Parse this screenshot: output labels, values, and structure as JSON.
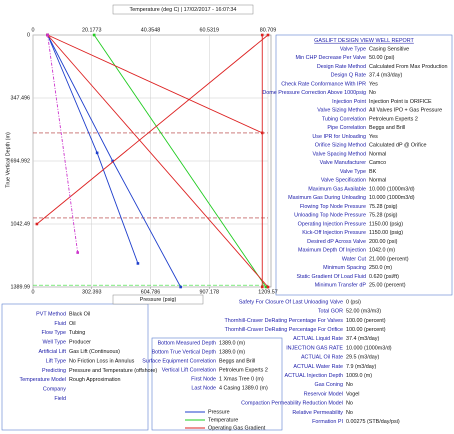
{
  "chart_data": {
    "type": "line",
    "title": "Temperature (deg C) | 17/02/2017 - 16:07:34",
    "x_label": "Pressure (psig)",
    "y_label": "True Vertical Depth (m)",
    "xlim": [
      0,
      1209.57
    ],
    "xticks": [
      0,
      302.393,
      604.786,
      907.178,
      1209.57
    ],
    "x2lim": [
      0,
      80.709
    ],
    "x2ticks": [
      0,
      20.1773,
      40.3548,
      60.5319,
      80.709
    ],
    "ylim": [
      0,
      1389.99
    ],
    "yticks": [
      0,
      347.496,
      694.992,
      1042.49,
      1389.99
    ],
    "valve_depths": [
      540,
      1009
    ],
    "perforation_depth": 1380,
    "series": [
      {
        "name": "Pressure",
        "color": "#1f3fcc",
        "x": [
          75.28,
          410,
          760
        ],
        "y": [
          0,
          694.992,
          1389.99
        ]
      },
      {
        "color": "#1f3fcc",
        "x": [
          75.28,
          330,
          540
        ],
        "y": [
          0,
          650,
          1260
        ]
      },
      {
        "name": "Temperature",
        "color": "#22cc22",
        "axis": "x2",
        "x": [
          21,
          80
        ],
        "y": [
          0,
          1389.99
        ]
      },
      {
        "name": "Operating Gas Gradient",
        "color": "#dd2222",
        "x": [
          75.28,
          1180
        ],
        "y": [
          0,
          540
        ]
      },
      {
        "color": "#dd2222",
        "x": [
          1209.57,
          20
        ],
        "y": [
          0,
          1042.49
        ]
      },
      {
        "color": "#dd2222",
        "x": [
          75.28,
          1209.57
        ],
        "y": [
          0,
          1389.99
        ]
      },
      {
        "color": "#dd2222",
        "x": [
          1180,
          1180
        ],
        "y": [
          0,
          1389.99
        ]
      },
      {
        "color": "#cc33cc",
        "dash": true,
        "x": [
          75.28,
          230
        ],
        "y": [
          0,
          1200
        ]
      }
    ]
  },
  "report": {
    "title": "GASLIFT DESIGN VIEW WELL REPORT",
    "rows": [
      [
        "Valve Type",
        "Casing Sensitive"
      ],
      [
        "Min CHP Decrease Per Valve",
        "50.00 (psi)"
      ],
      [
        "Design Rate Method",
        "Calculated From Max Production"
      ],
      [
        "Design Q Rate",
        "37.4 (m3/day)"
      ],
      [
        "Check Rate Conformance With IPR",
        "Yes"
      ],
      [
        "Dome Pressure Correction Above 1000psig",
        "No"
      ],
      [
        "Injection Point",
        "Injection Point is ORIFICE"
      ],
      [
        "Valve Sizing Method",
        "All Valves IPO + Gas Pressure"
      ],
      [
        "Tubing Correlation",
        "Petroleum Experts 2"
      ],
      [
        "Pipe Correlation",
        "Beggs and Brill"
      ],
      [
        "Use IPR for Unloading",
        "Yes"
      ],
      [
        "Orifice Sizing Method",
        "Calculated dP @ Orifice"
      ],
      [
        "Valve Spacing Method",
        "Normal"
      ],
      [
        "Valve Manufacturer",
        "Camco"
      ],
      [
        "Valve Type",
        "BK"
      ],
      [
        "Valve Specification",
        "Normal"
      ],
      [
        "Maximum Gas Available",
        "10.000 (1000m3/d)"
      ],
      [
        "Maximum Gas During Unloading",
        "10.000 (1000m3/d)"
      ],
      [
        "Flowing Top Node Pressure",
        "75.28 (psig)"
      ],
      [
        "Unloading Top Node Pressure",
        "75.28 (psig)"
      ],
      [
        "Operating Injection Pressure",
        "1150.00 (psig)"
      ],
      [
        "Kick-Off Injection Pressure",
        "1150.00 (psig)"
      ],
      [
        "Desired dP Across Valve",
        "200.00 (psi)"
      ],
      [
        "Maximum Depth Of Injection",
        "1042.0 (m)"
      ],
      [
        "Water Cut",
        "21.000 (percent)"
      ],
      [
        "Minimum Spacing",
        "250.0 (m)"
      ],
      [
        "Static Gradient Of Load Fluid",
        "0.620 (psi/ft)"
      ],
      [
        "Minimum Transfer dP",
        "25.00 (percent)"
      ]
    ],
    "more_rows": [
      [
        "Safety For Closure Of Last Unloading Valve",
        "0 (psi)"
      ],
      [
        "Total GOR",
        "52.00 (m3/m3)"
      ],
      [
        "Thornhill-Craver DeRating Percentage For Valves",
        "100.00 (percent)"
      ],
      [
        "Thornhill-Craver DeRating Percentage For Orifice",
        "100.00 (percent)"
      ],
      [
        "ACTUAL Liquid Rate",
        "37.4 (m3/day)"
      ],
      [
        "INJECTION GAS RATE",
        "10.000 (1000m3/d)"
      ],
      [
        "ACTUAL Oil Rate",
        "29.5 (m3/day)"
      ],
      [
        "ACTUAL Water Rate",
        "7.9 (m3/day)"
      ],
      [
        "ACTUAL Injection Depth",
        "1009.0 (m)"
      ],
      [
        "Gas Coning",
        "No"
      ],
      [
        "Reservoir Model",
        "Vogel"
      ],
      [
        "Compaction Permeability Reduction Model",
        "No"
      ],
      [
        "Relative Permeability",
        "No"
      ],
      [
        "Formation PI",
        "0.00275 (STB/day/psi)"
      ]
    ]
  },
  "system": {
    "rows": [
      [
        "PVT Method",
        "Black Oil"
      ],
      [
        "Fluid",
        "Oil"
      ],
      [
        "Flow Type",
        "Tubing"
      ],
      [
        "Well Type",
        "Producer"
      ],
      [
        "Artificial Lift",
        "Gas Lift (Continuous)"
      ],
      [
        "Lift Type",
        "No Friction Loss in Annulus"
      ],
      [
        "Predicting",
        "Pressure and Temperature (offshore)"
      ],
      [
        "Temperature Model",
        "Rough Approximation"
      ],
      [
        "Company"
      ],
      [
        "Field"
      ]
    ]
  },
  "well": {
    "rows": [
      [
        "Bottom Measured Depth",
        "1389.0 (m)"
      ],
      [
        "Bottom True Vertical Depth",
        "1389.0 (m)"
      ],
      [
        "Surface Equipment Correlation",
        "Beggs and Brill"
      ],
      [
        "Vertical Lift Correlation",
        "Petroleum Experts 2"
      ],
      [
        "First Node",
        "1 Xmas Tree 0 (m)"
      ],
      [
        "Last Node",
        "4 Casing 1389.0 (m)"
      ]
    ]
  }
}
